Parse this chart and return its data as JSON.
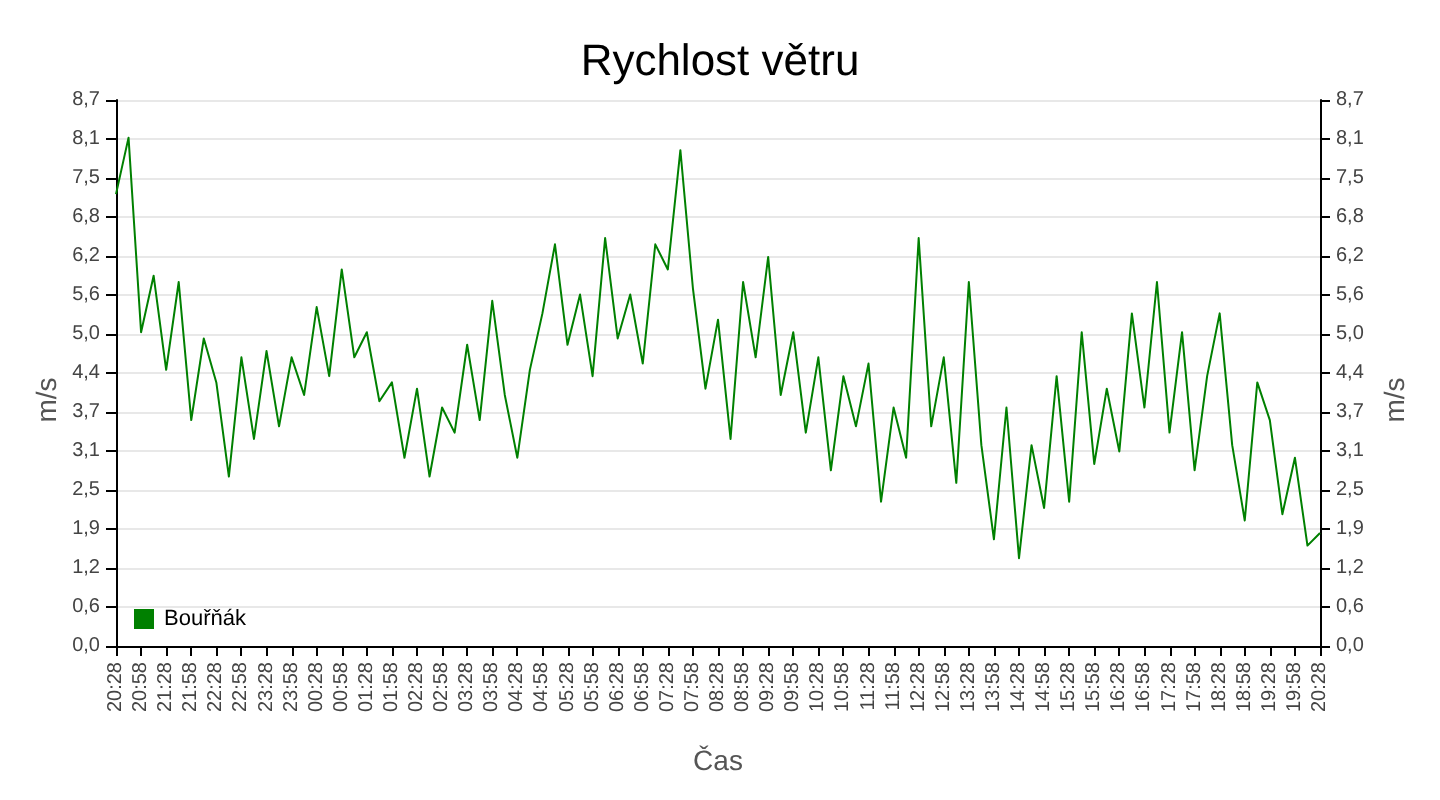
{
  "chart_data": {
    "type": "line",
    "title": "Rychlost větru",
    "xlabel": "Čas",
    "ylabel": "m/s",
    "y2label": "m/s",
    "x": [
      "--01-01T20:28",
      "--01-01T20:43",
      "--01-01T20:58",
      "--01-01T21:13",
      "--01-01T21:28",
      "--01-01T21:43",
      "--01-01T21:58",
      "--01-01T22:13",
      "--01-01T22:28",
      "--01-01T22:43",
      "--01-01T22:58",
      "--01-01T23:13",
      "--01-01T23:28",
      "--01-01T23:43",
      "--01-01T23:58",
      "--01-02T00:13",
      "--01-02T00:28",
      "--01-02T00:43",
      "--01-02T00:58",
      "--01-02T01:13",
      "--01-02T01:28",
      "--01-02T01:43",
      "--01-02T01:58",
      "--01-02T02:13",
      "--01-02T02:28",
      "--01-02T02:43",
      "--01-02T02:58",
      "--01-02T03:13",
      "--01-02T03:28",
      "--01-02T03:43",
      "--01-02T03:58",
      "--01-02T04:13",
      "--01-02T04:28",
      "--01-02T04:43",
      "--01-02T04:58",
      "--01-02T05:13",
      "--01-02T05:28",
      "--01-02T05:43",
      "--01-02T05:58",
      "--01-02T06:13",
      "--01-02T06:28",
      "--01-02T06:43",
      "--01-02T06:58",
      "--01-02T07:13",
      "--01-02T07:28",
      "--01-02T07:43",
      "--01-02T07:58",
      "--01-02T08:13",
      "--01-02T08:28",
      "--01-02T08:43",
      "--01-02T08:58",
      "--01-02T09:13",
      "--01-02T09:28",
      "--01-02T09:43",
      "--01-02T09:58",
      "--01-02T10:13",
      "--01-02T10:28",
      "--01-02T10:43",
      "--01-02T10:58",
      "--01-02T11:13",
      "--01-02T11:28",
      "--01-02T11:43",
      "--01-02T11:58",
      "--01-02T12:13",
      "--01-02T12:28",
      "--01-02T12:43",
      "--01-02T12:58",
      "--01-02T13:13",
      "--01-02T13:28",
      "--01-02T13:43",
      "--01-02T13:58",
      "--01-02T14:13",
      "--01-02T14:28",
      "--01-02T14:43",
      "--01-02T14:58",
      "--01-02T15:13",
      "--01-02T15:28",
      "--01-02T15:43",
      "--01-02T15:58",
      "--01-02T16:13",
      "--01-02T16:28",
      "--01-02T16:43",
      "--01-02T16:58",
      "--01-02T17:13",
      "--01-02T17:28",
      "--01-02T17:43",
      "--01-02T17:58",
      "--01-02T18:13",
      "--01-02T18:28",
      "--01-02T18:43",
      "--01-02T18:58",
      "--01-02T19:13",
      "--01-02T19:28",
      "--01-02T19:43",
      "--01-02T19:58",
      "--01-02T20:13",
      "--01-02T20:28"
    ],
    "series": [
      {
        "name": "Bouřňák",
        "color": "#008000",
        "values": [
          7.2,
          8.1,
          5.0,
          5.9,
          4.4,
          5.8,
          3.6,
          4.9,
          4.2,
          2.7,
          4.6,
          3.3,
          4.7,
          3.5,
          4.6,
          4.0,
          5.4,
          4.3,
          6.0,
          4.6,
          5.0,
          3.9,
          4.2,
          3.0,
          4.1,
          2.7,
          3.8,
          3.4,
          4.8,
          3.6,
          5.5,
          4.0,
          3.0,
          4.4,
          5.3,
          6.4,
          4.8,
          5.6,
          4.3,
          6.5,
          4.9,
          5.6,
          4.5,
          6.4,
          6.0,
          7.9,
          5.7,
          4.1,
          5.2,
          3.3,
          5.8,
          4.6,
          6.2,
          4.0,
          5.0,
          3.4,
          4.6,
          2.8,
          4.3,
          3.5,
          4.5,
          2.3,
          3.8,
          3.0,
          6.5,
          3.5,
          4.6,
          2.6,
          5.8,
          3.2,
          1.7,
          3.8,
          1.4,
          3.2,
          2.2,
          4.3,
          2.3,
          5.0,
          2.9,
          4.1,
          3.1,
          5.3,
          3.8,
          5.8,
          3.4,
          5.0,
          2.8,
          4.3,
          5.3,
          3.2,
          2.0,
          4.2,
          3.6,
          2.1,
          3.0,
          1.6,
          1.8
        ]
      }
    ],
    "xlim": [
      "--01-01T20:28",
      "--01-02T20:28"
    ],
    "xticks": [
      {
        "value": "--01-01T20:28",
        "label": "20:28"
      },
      {
        "value": "--01-01T20:58",
        "label": "20:58"
      },
      {
        "value": "--01-01T21:28",
        "label": "21:28"
      },
      {
        "value": "--01-01T21:58",
        "label": "21:58"
      },
      {
        "value": "--01-01T22:28",
        "label": "22:28"
      },
      {
        "value": "--01-01T22:58",
        "label": "22:58"
      },
      {
        "value": "--01-01T23:28",
        "label": "23:28"
      },
      {
        "value": "--01-01T23:58",
        "label": "23:58"
      },
      {
        "value": "--01-02T00:28",
        "label": "00:28"
      },
      {
        "value": "--01-02T00:58",
        "label": "00:58"
      },
      {
        "value": "--01-02T01:28",
        "label": "01:28"
      },
      {
        "value": "--01-02T01:58",
        "label": "01:58"
      },
      {
        "value": "--01-02T02:28",
        "label": "02:28"
      },
      {
        "value": "--01-02T02:58",
        "label": "02:58"
      },
      {
        "value": "--01-02T03:28",
        "label": "03:28"
      },
      {
        "value": "--01-02T03:58",
        "label": "03:58"
      },
      {
        "value": "--01-02T04:28",
        "label": "04:28"
      },
      {
        "value": "--01-02T04:58",
        "label": "04:58"
      },
      {
        "value": "--01-02T05:28",
        "label": "05:28"
      },
      {
        "value": "--01-02T05:58",
        "label": "05:58"
      },
      {
        "value": "--01-02T06:28",
        "label": "06:28"
      },
      {
        "value": "--01-02T06:58",
        "label": "06:58"
      },
      {
        "value": "--01-02T07:28",
        "label": "07:28"
      },
      {
        "value": "--01-02T07:58",
        "label": "07:58"
      },
      {
        "value": "--01-02T08:28",
        "label": "08:28"
      },
      {
        "value": "--01-02T08:58",
        "label": "08:58"
      },
      {
        "value": "--01-02T09:28",
        "label": "09:28"
      },
      {
        "value": "--01-02T09:58",
        "label": "09:58"
      },
      {
        "value": "--01-02T10:28",
        "label": "10:28"
      },
      {
        "value": "--01-02T10:58",
        "label": "10:58"
      },
      {
        "value": "--01-02T11:28",
        "label": "11:28"
      },
      {
        "value": "--01-02T11:58",
        "label": "11:58"
      },
      {
        "value": "--01-02T12:28",
        "label": "12:28"
      },
      {
        "value": "--01-02T12:58",
        "label": "12:58"
      },
      {
        "value": "--01-02T13:28",
        "label": "13:28"
      },
      {
        "value": "--01-02T13:58",
        "label": "13:58"
      },
      {
        "value": "--01-02T14:28",
        "label": "14:28"
      },
      {
        "value": "--01-02T14:58",
        "label": "14:58"
      },
      {
        "value": "--01-02T15:28",
        "label": "15:28"
      },
      {
        "value": "--01-02T15:58",
        "label": "15:58"
      },
      {
        "value": "--01-02T16:28",
        "label": "16:28"
      },
      {
        "value": "--01-02T16:58",
        "label": "16:58"
      },
      {
        "value": "--01-02T17:28",
        "label": "17:28"
      },
      {
        "value": "--01-02T17:58",
        "label": "17:58"
      },
      {
        "value": "--01-02T18:28",
        "label": "18:28"
      },
      {
        "value": "--01-02T18:58",
        "label": "18:58"
      },
      {
        "value": "--01-02T19:28",
        "label": "19:28"
      },
      {
        "value": "--01-02T19:58",
        "label": "19:58"
      },
      {
        "value": "--01-02T20:28",
        "label": "20:28"
      }
    ],
    "ylim": [
      0,
      8.7
    ],
    "yticks": [
      {
        "value": 0,
        "label": "0,0"
      },
      {
        "value": 0.621,
        "label": "0,6"
      },
      {
        "value": 1.243,
        "label": "1,2"
      },
      {
        "value": 1.864,
        "label": "1,9"
      },
      {
        "value": 2.486,
        "label": "2,5"
      },
      {
        "value": 3.107,
        "label": "3,1"
      },
      {
        "value": 3.729,
        "label": "3,7"
      },
      {
        "value": 4.35,
        "label": "4,4"
      },
      {
        "value": 4.971,
        "label": "5,0"
      },
      {
        "value": 5.593,
        "label": "5,6"
      },
      {
        "value": 6.214,
        "label": "6,2"
      },
      {
        "value": 6.836,
        "label": "6,8"
      },
      {
        "value": 7.457,
        "label": "7,5"
      },
      {
        "value": 8.079,
        "label": "8,1"
      },
      {
        "value": 8.7,
        "label": "8,7"
      }
    ],
    "y2lim": [
      0,
      8.7
    ],
    "y2ticks": [
      {
        "value": 0,
        "label": "0,0"
      },
      {
        "value": 0.621,
        "label": "0,6"
      },
      {
        "value": 1.243,
        "label": "1,2"
      },
      {
        "value": 1.864,
        "label": "1,9"
      },
      {
        "value": 2.486,
        "label": "2,5"
      },
      {
        "value": 3.107,
        "label": "3,1"
      },
      {
        "value": 3.729,
        "label": "3,7"
      },
      {
        "value": 4.35,
        "label": "4,4"
      },
      {
        "value": 4.971,
        "label": "5,0"
      },
      {
        "value": 5.593,
        "label": "5,6"
      },
      {
        "value": 6.214,
        "label": "6,2"
      },
      {
        "value": 6.836,
        "label": "6,8"
      },
      {
        "value": 7.457,
        "label": "7,5"
      },
      {
        "value": 8.079,
        "label": "8,1"
      },
      {
        "value": 8.7,
        "label": "8,7"
      }
    ],
    "grid": "y",
    "legend": "bottom left",
    "marker": "none",
    "line_style": "solid"
  }
}
